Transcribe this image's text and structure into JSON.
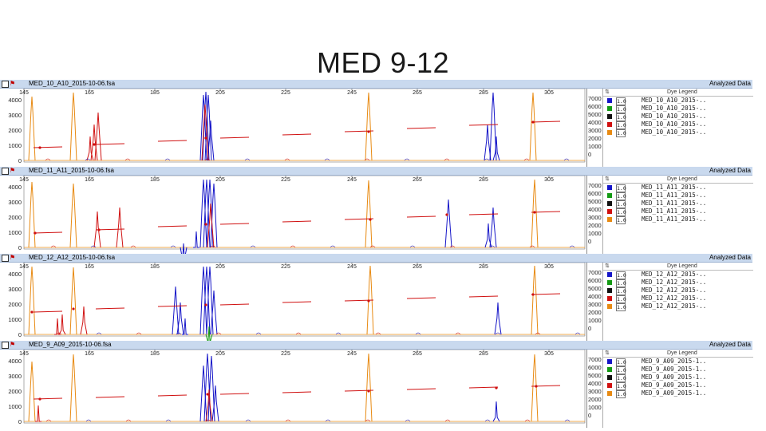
{
  "title": "MED 9-12",
  "header_right": "Analyzed Data",
  "legend_header": "Dye Legend",
  "legend_sort_icon": "sort-icon",
  "legend_scale": "1.0",
  "dye_colors": [
    "#1515c8",
    "#139a13",
    "#111111",
    "#d01010",
    "#e88a12"
  ],
  "size_ticks": [
    "145",
    "165",
    "185",
    "205",
    "225",
    "245",
    "265",
    "285",
    "305"
  ],
  "panels": [
    {
      "filename": "MED_10_A10_2015-10-06.fsa",
      "y_ticks": [
        "4000",
        "3000",
        "2000",
        "1000",
        "0"
      ],
      "right_ticks": [
        "7000",
        "6000",
        "5000",
        "4000",
        "3000",
        "2000",
        "1000",
        "0"
      ],
      "legend": [
        "MED_10_A10_2015-..",
        "MED_10_A10_2015-..",
        "MED_10_A10_2015-..",
        "MED_10_A10_2015-..",
        "MED_10_A10_2015-.."
      ]
    },
    {
      "filename": "MED_11_A11_2015-10-06.fsa",
      "y_ticks": [
        "4000",
        "3000",
        "2000",
        "1000",
        "0"
      ],
      "right_ticks": [
        "7000",
        "6000",
        "5000",
        "4000",
        "3000",
        "2000",
        "1000",
        "0"
      ],
      "legend": [
        "MED_11_A11_2015-..",
        "MED_11_A11_2015-..",
        "MED_11_A11_2015-..",
        "MED_11_A11_2015-..",
        "MED_11_A11_2015-.."
      ]
    },
    {
      "filename": "MED_12_A12_2015-10-06.fsa",
      "y_ticks": [
        "4000",
        "3000",
        "2000",
        "1000",
        "0"
      ],
      "right_ticks": [
        "7000",
        "6000",
        "5000",
        "4000",
        "3000",
        "2000",
        "1000",
        "0"
      ],
      "legend": [
        "MED_12_A12_2015-..",
        "MED_12_A12_2015-..",
        "MED_12_A12_2015-..",
        "MED_12_A12_2015-..",
        "MED_12_A12_2015-.."
      ]
    },
    {
      "filename": "MED_9_A09_2015-10-06.fsa",
      "y_ticks": [
        "4000",
        "3000",
        "2000",
        "1000",
        "0"
      ],
      "right_ticks": [
        "7000",
        "6000",
        "5000",
        "4000",
        "3000",
        "2000",
        "1000",
        "0"
      ],
      "legend": [
        "MED_9_A09_2015-1..",
        "MED_9_A09_2015-1..",
        "MED_9_A09_2015-1..",
        "MED_9_A09_2015-1..",
        "MED_9_A09_2015-1.."
      ]
    }
  ]
}
